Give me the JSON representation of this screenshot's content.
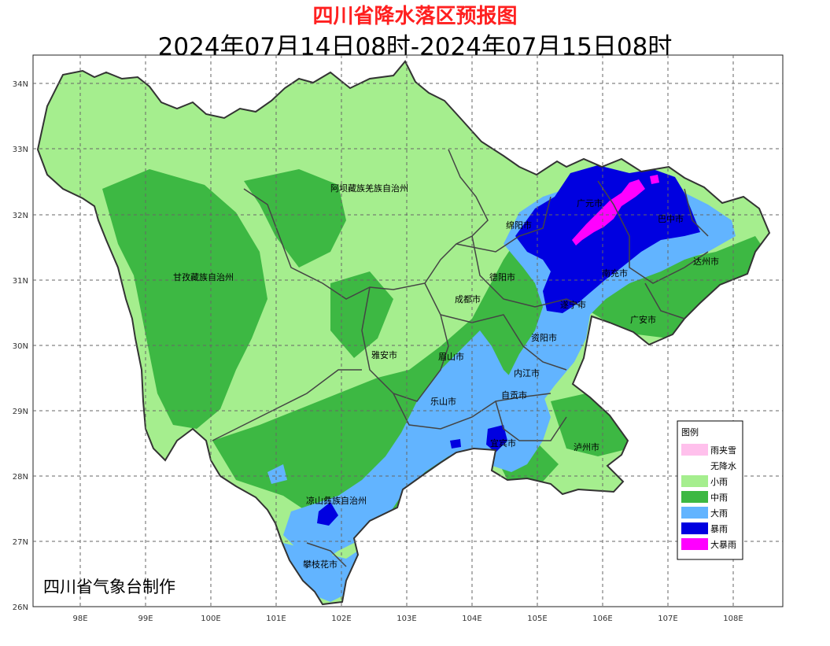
{
  "title": "四川省降水落区预报图",
  "subtitle": "2024年07月14日08时-2024年07月15日08时",
  "credit": "四川省气象台制作",
  "axes": {
    "lat_ticks": [
      "34N",
      "33N",
      "32N",
      "31N",
      "30N",
      "29N",
      "28N",
      "27N",
      "26N"
    ],
    "lon_ticks": [
      "98E",
      "99E",
      "100E",
      "101E",
      "102E",
      "103E",
      "104E",
      "105E",
      "106E",
      "107E",
      "108E"
    ]
  },
  "legend": {
    "title": "图例",
    "items": [
      {
        "label": "雨夹雪",
        "color": "#ffc0ec"
      },
      {
        "label": "无降水",
        "color": "#ffffff"
      },
      {
        "label": "小雨",
        "color": "#a5ee8e"
      },
      {
        "label": "中雨",
        "color": "#3db843"
      },
      {
        "label": "大雨",
        "color": "#62b4ff"
      },
      {
        "label": "暴雨",
        "color": "#0000e0"
      },
      {
        "label": "大暴雨",
        "color": "#ff00ff"
      }
    ]
  },
  "regions": [
    {
      "name": "阿坝藏族羌族自治州"
    },
    {
      "name": "甘孜藏族自治州"
    },
    {
      "name": "绵阳市"
    },
    {
      "name": "广元市"
    },
    {
      "name": "巴中市"
    },
    {
      "name": "达州市"
    },
    {
      "name": "德阳市"
    },
    {
      "name": "南充市"
    },
    {
      "name": "成都市"
    },
    {
      "name": "遂宁市"
    },
    {
      "name": "广安市"
    },
    {
      "name": "资阳市"
    },
    {
      "name": "雅安市"
    },
    {
      "name": "眉山市"
    },
    {
      "name": "内江市"
    },
    {
      "name": "自贡市"
    },
    {
      "name": "乐山市"
    },
    {
      "name": "宜宾市"
    },
    {
      "name": "泸州市"
    },
    {
      "name": "凉山彝族自治州"
    },
    {
      "name": "攀枝花市"
    }
  ]
}
